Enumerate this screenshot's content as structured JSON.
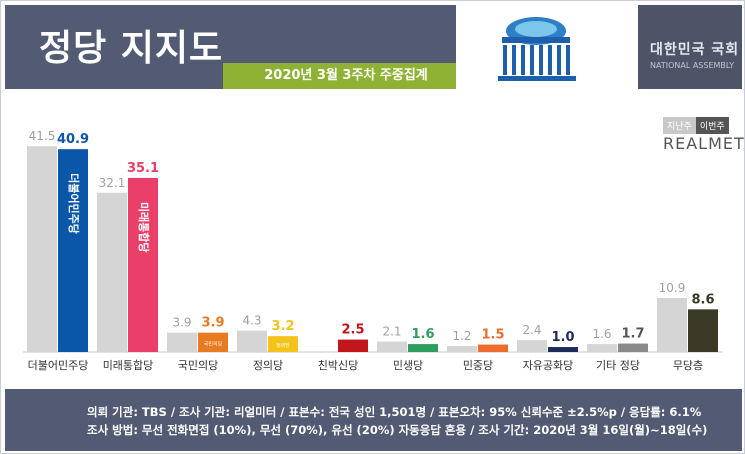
{
  "header": {
    "title": "정당 지지도",
    "subtitle": "2020년 3월 3주차 주중집계",
    "org_kr": "대한민국 국회",
    "org_en": "NATIONAL ASSEMBLY"
  },
  "legend": {
    "prev_label": "지난주",
    "curr_label": "이번주",
    "brand": "REALMETER"
  },
  "footer": {
    "line1": "의뢰 기관: TBS / 조사 기관: 리얼미터 / 표본수: 전국 성인 1,501명 / 표본오차: 95% 신뢰수준 ±2.5%p / 응답률: 6.1%",
    "line2": "조사 방법: 무선 전화면접 (10%), 무선 (70%), 유선 (20%) 자동응답 혼용 / 조사 기간: 2020년 3월 16일(월)~18일(수)"
  },
  "chart_data": {
    "type": "bar",
    "title": "정당 지지도",
    "subtitle": "2020년 3월 3주차 주중집계",
    "categories": [
      "더불어민주당",
      "미래통합당",
      "국민의당",
      "정의당",
      "친박신당",
      "민생당",
      "민중당",
      "자유공화당",
      "기타 정당",
      "무당층"
    ],
    "series": [
      {
        "name": "지난주",
        "values": [
          41.5,
          32.1,
          3.9,
          4.3,
          null,
          2.1,
          1.2,
          2.4,
          1.6,
          10.9
        ]
      },
      {
        "name": "이번주",
        "values": [
          40.9,
          35.1,
          3.9,
          3.2,
          2.5,
          1.6,
          1.5,
          1.0,
          1.7,
          8.6
        ]
      }
    ],
    "value_labels": {
      "prev": [
        "41.5",
        "32.1",
        "3.9",
        "4.3",
        "",
        "2.1",
        "1.2",
        "2.4",
        "1.6",
        "10.9"
      ],
      "curr": [
        "40.9",
        "35.1",
        "3.9",
        "3.2",
        "2.5",
        "1.6",
        "1.5",
        "1.0",
        "1.7",
        "8.6"
      ]
    },
    "colors": {
      "prev": "#d5d5d5",
      "curr": [
        "#0a56a8",
        "#ea3f68",
        "#e87a21",
        "#f4c31a",
        "#c0161c",
        "#2e9d5e",
        "#ed6b2b",
        "#1c2b5a",
        "#8a8a8a",
        "#3a3926"
      ],
      "curr_label": [
        "#0a56a8",
        "#ea3f68",
        "#e87a21",
        "#f4c31a",
        "#c0161c",
        "#2e9d5e",
        "#ed6b2b",
        "#1c2b5a",
        "#555555",
        "#3a3926"
      ]
    },
    "bar_logos": [
      "더불어민주당",
      "미래통합당",
      "국민의당",
      "정의당",
      "",
      "",
      "",
      "",
      "",
      ""
    ],
    "ylim": [
      0,
      45
    ],
    "grid": false,
    "legend_position": "top-right"
  }
}
